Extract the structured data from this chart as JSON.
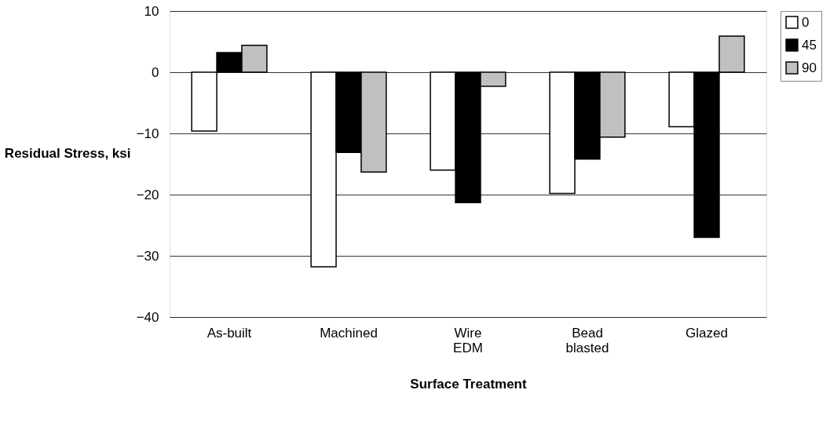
{
  "chart_data": {
    "type": "bar",
    "xlabel": "Surface Treatment",
    "ylabel": "Residual Stress, ksi",
    "categories": [
      "As-built",
      "Machined",
      "Wire EDM",
      "Bead blasted",
      "Glazed"
    ],
    "series": [
      {
        "name": "0",
        "color": "#ffffff",
        "values": [
          -9.6,
          -31.8,
          -16.0,
          -19.8,
          -8.9
        ]
      },
      {
        "name": "45",
        "color": "#000000",
        "values": [
          3.2,
          -13.1,
          -21.3,
          -14.2,
          -27.0
        ]
      },
      {
        "name": "90",
        "color": "#c0c0c0",
        "values": [
          4.4,
          -16.3,
          -2.3,
          -10.6,
          5.9
        ]
      }
    ],
    "ylim": [
      -40,
      10
    ],
    "yticks": [
      -40,
      -30,
      -20,
      -10,
      0,
      10
    ],
    "grid": "y",
    "legend": "top right"
  }
}
